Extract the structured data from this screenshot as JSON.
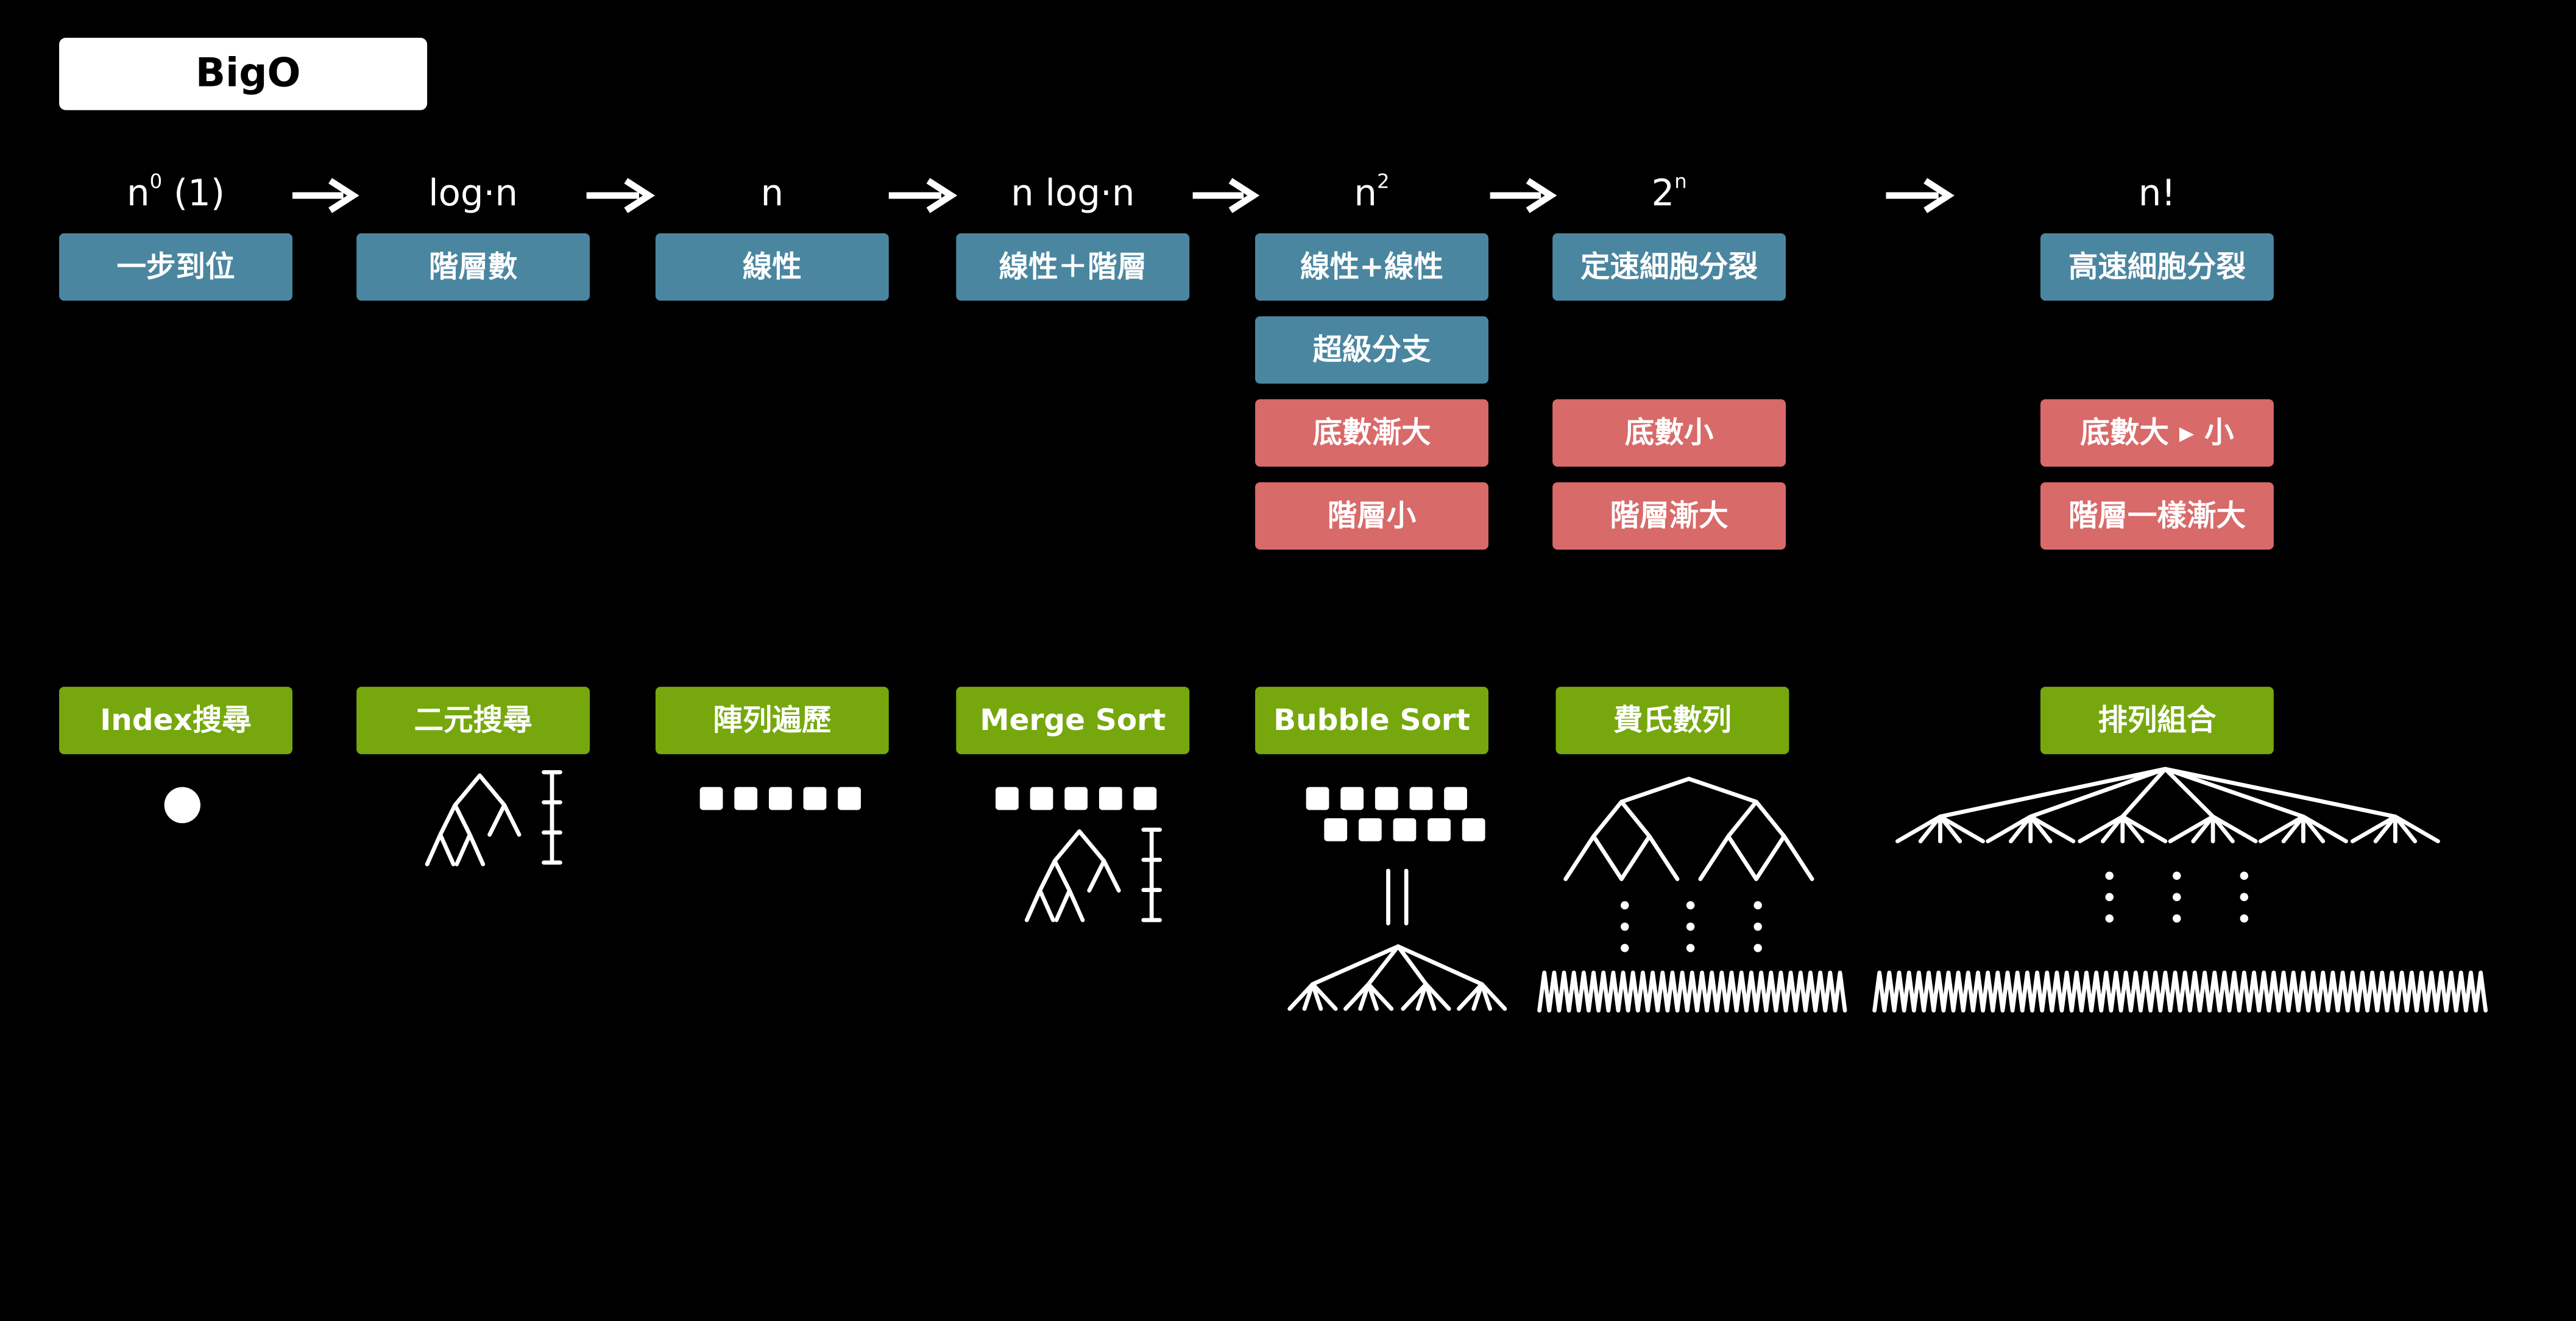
{
  "title": "BigO",
  "columns": [
    {
      "complexity": "n",
      "superscript": "0",
      "suffix": " (1)",
      "traits": [
        "一步到位"
      ],
      "example": "Index搜尋"
    },
    {
      "complexity": "log·n",
      "traits": [
        "階層數"
      ],
      "example": "二元搜尋"
    },
    {
      "complexity": "n",
      "traits": [
        "線性"
      ],
      "example": "陣列遍歷"
    },
    {
      "complexity": "n  log·n",
      "traits": [
        "線性＋階層"
      ],
      "example": "Merge Sort"
    },
    {
      "complexity": "n",
      "superscript": "2",
      "traits": [
        "線性+線性",
        "超級分支"
      ],
      "notes": [
        "底數漸大",
        "階層小"
      ],
      "example": "Bubble Sort"
    },
    {
      "complexity": "2",
      "superscript": "n",
      "traits": [
        "定速細胞分裂"
      ],
      "notes": [
        "底數小",
        "階層漸大"
      ],
      "example": "費氏數列"
    },
    {
      "complexity": "n!",
      "traits": [
        "高速細胞分裂"
      ],
      "notes": [
        "底數大 ▸ 小",
        "階層一樣漸大"
      ],
      "example": "排列組合"
    }
  ]
}
